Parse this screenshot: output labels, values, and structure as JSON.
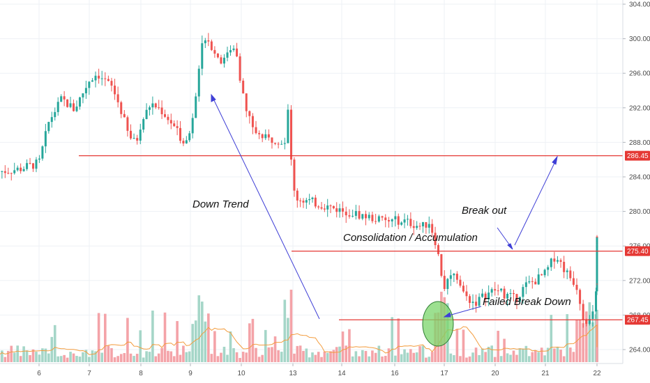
{
  "colors": {
    "up": "#26a69a",
    "down": "#ef5350",
    "volume_up": "#a5d6c8",
    "volume_down": "#f4a3a8",
    "ma": "#f39c3d",
    "level": "#e53935",
    "arrow": "#3f3fd6",
    "circle_fill": "#7bd66b",
    "grid": "#eef1f5",
    "axis_text": "#4a4a4a"
  },
  "chart_data": {
    "type": "candlestick",
    "x_ticks": [
      "6",
      "7",
      "8",
      "9",
      "10",
      "13",
      "14",
      "16",
      "17",
      "20",
      "21",
      "22"
    ],
    "y_ticks": [
      "304.00",
      "300.00",
      "296.00",
      "292.00",
      "288.00",
      "284.00",
      "280.00",
      "276.00",
      "272.00",
      "268.00",
      "264.00"
    ],
    "ylim": [
      262,
      304
    ],
    "grid": true,
    "levels": [
      {
        "label": "286.45",
        "value": 286.45
      },
      {
        "label": "275.40",
        "value": 275.4
      },
      {
        "label": "267.45",
        "value": 267.45
      }
    ],
    "annotations": [
      {
        "text": "Down Trend"
      },
      {
        "text": "Consolidation / Accumulation"
      },
      {
        "text": "Break out"
      },
      {
        "text": "Failed Break Down"
      }
    ],
    "price_path": [
      [
        5.2,
        284.6
      ],
      [
        5.6,
        284.9
      ],
      [
        6.0,
        285.6
      ],
      [
        6.2,
        290.5
      ],
      [
        6.45,
        293.0
      ],
      [
        6.7,
        291.8
      ],
      [
        7.0,
        295.2
      ],
      [
        7.15,
        296.0
      ],
      [
        7.45,
        294.3
      ],
      [
        7.6,
        292.0
      ],
      [
        7.75,
        289.0
      ],
      [
        7.9,
        287.8
      ],
      [
        8.0,
        290.2
      ],
      [
        8.2,
        292.5
      ],
      [
        8.4,
        291.8
      ],
      [
        8.6,
        290.4
      ],
      [
        8.8,
        288.6
      ],
      [
        8.95,
        288.0
      ],
      [
        9.1,
        293.0
      ],
      [
        9.2,
        298.5
      ],
      [
        9.3,
        300.5
      ],
      [
        9.5,
        298.3
      ],
      [
        9.65,
        297.2
      ],
      [
        9.75,
        299.0
      ],
      [
        9.9,
        298.8
      ],
      [
        10.0,
        294.5
      ],
      [
        10.1,
        291.5
      ],
      [
        10.3,
        289.0
      ],
      [
        10.5,
        288.3
      ],
      [
        10.7,
        288.4
      ],
      [
        10.85,
        287.8
      ],
      [
        10.9,
        292.0
      ],
      [
        10.95,
        287.0
      ],
      [
        11.0,
        283.0
      ],
      [
        11.05,
        281.6
      ],
      [
        12.85,
        278.8
      ],
      [
        13.1,
        279.0
      ],
      [
        13.35,
        278.6
      ],
      [
        13.55,
        278.2
      ],
      [
        13.7,
        278.8
      ],
      [
        13.85,
        276.0
      ],
      [
        14.0,
        271.0
      ],
      [
        14.2,
        273.2
      ],
      [
        14.4,
        270.2
      ],
      [
        14.6,
        269.4
      ],
      [
        14.8,
        270.3
      ],
      [
        15.0,
        270.9
      ],
      [
        15.2,
        270.4
      ],
      [
        15.4,
        269.8
      ],
      [
        15.6,
        271.4
      ],
      [
        15.8,
        272.0
      ],
      [
        16.0,
        272.8
      ],
      [
        16.2,
        275.0
      ],
      [
        16.4,
        273.0
      ],
      [
        16.6,
        271.5
      ],
      [
        16.75,
        267.3
      ],
      [
        16.9,
        267.6
      ],
      [
        17.05,
        272.5
      ],
      [
        17.25,
        271.8
      ],
      [
        17.4,
        272.4
      ],
      [
        17.55,
        271.6
      ],
      [
        17.7,
        274.5
      ],
      [
        17.9,
        276.0
      ],
      [
        18.1,
        276.9
      ],
      [
        18.3,
        277.6
      ]
    ]
  }
}
